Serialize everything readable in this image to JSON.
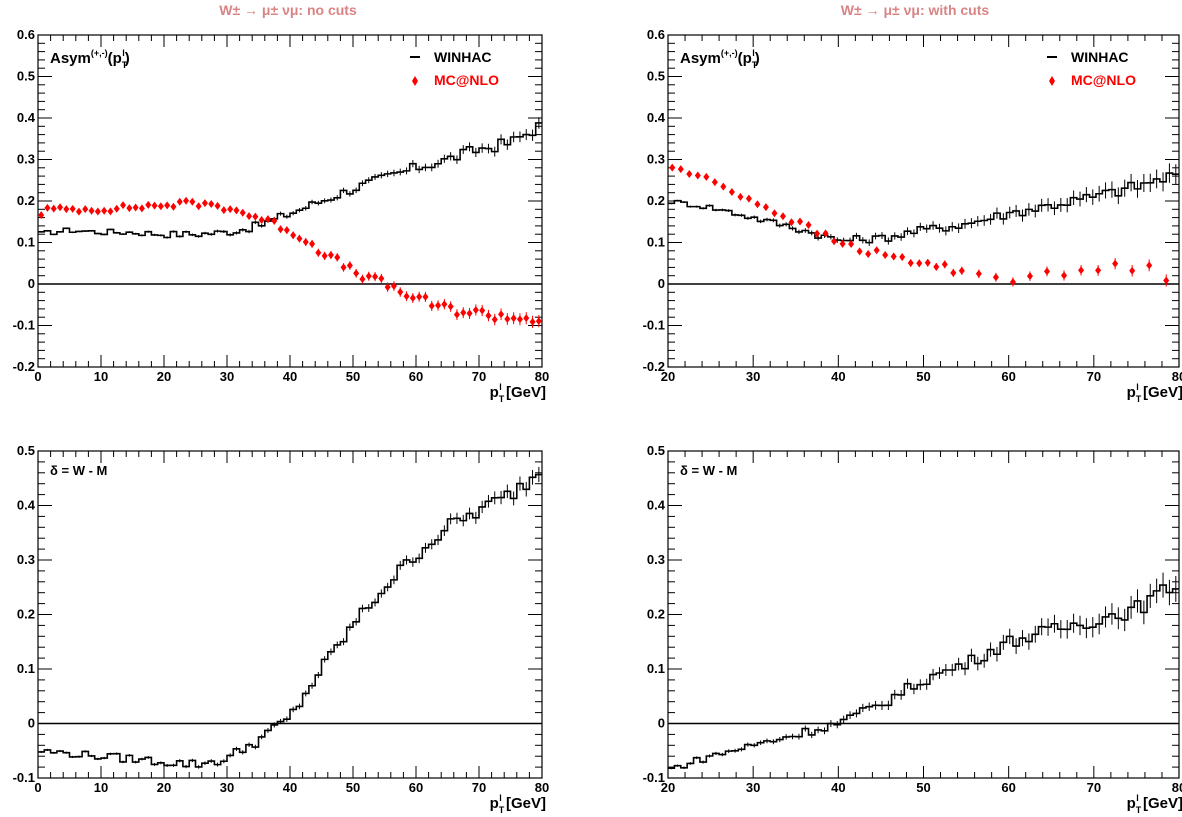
{
  "titles": {
    "left": "W± → μ± νμ: no cuts",
    "right": "W± → μ± νμ: with cuts"
  },
  "colors": {
    "winhac": "#000000",
    "mcnlo": "#ff0000",
    "title": "#d98484"
  },
  "chart_data": [
    {
      "id": "asym-nocuts",
      "type": "line",
      "title": "W± → μ± νμ: no cuts",
      "label": "Asym(+,-)(pT l)",
      "xlabel": "pT l [GeV]",
      "ylabel": "",
      "xlim": [
        0,
        80
      ],
      "ylim": [
        -0.2,
        0.6
      ],
      "x_ticks": [
        0,
        10,
        20,
        30,
        40,
        50,
        60,
        70,
        80
      ],
      "y_ticks": [
        -0.2,
        -0.1,
        0,
        0.1,
        0.2,
        0.3,
        0.4,
        0.5,
        0.6
      ],
      "legend": [
        "WINHAC",
        "MC@NLO"
      ],
      "legend_position": "top-right",
      "series": [
        {
          "name": "WINHAC",
          "style": "histogram",
          "x": [
            0,
            5,
            10,
            15,
            20,
            25,
            30,
            35,
            40,
            45,
            50,
            55,
            60,
            65,
            70,
            75,
            80
          ],
          "values": [
            0.12,
            0.13,
            0.125,
            0.125,
            0.12,
            0.12,
            0.125,
            0.14,
            0.17,
            0.2,
            0.23,
            0.255,
            0.28,
            0.3,
            0.325,
            0.34,
            0.385
          ]
        },
        {
          "name": "MC@NLO",
          "style": "markers",
          "x": [
            0,
            1,
            5,
            10,
            15,
            20,
            25,
            30,
            35,
            40,
            45,
            50,
            55,
            60,
            65,
            70,
            75,
            80
          ],
          "values": [
            0.16,
            0.18,
            0.18,
            0.18,
            0.185,
            0.19,
            0.195,
            0.185,
            0.16,
            0.13,
            0.08,
            0.03,
            0.0,
            -0.035,
            -0.06,
            -0.07,
            -0.08,
            -0.085
          ]
        }
      ]
    },
    {
      "id": "asym-withcuts",
      "type": "line",
      "title": "W± → μ± νμ: with cuts",
      "label": "Asym(+,-)(pT l)",
      "xlabel": "pT l [GeV]",
      "ylabel": "",
      "xlim": [
        20,
        80
      ],
      "ylim": [
        -0.2,
        0.6
      ],
      "x_ticks": [
        20,
        30,
        40,
        50,
        60,
        70,
        80
      ],
      "y_ticks": [
        -0.2,
        -0.1,
        0,
        0.1,
        0.2,
        0.3,
        0.4,
        0.5,
        0.6
      ],
      "legend": [
        "WINHAC",
        "MC@NLO"
      ],
      "legend_position": "top-right",
      "series": [
        {
          "name": "WINHAC",
          "style": "histogram",
          "x": [
            20,
            25,
            30,
            35,
            40,
            45,
            50,
            55,
            60,
            65,
            70,
            75,
            80
          ],
          "values": [
            0.2,
            0.185,
            0.16,
            0.135,
            0.105,
            0.11,
            0.13,
            0.145,
            0.17,
            0.19,
            0.21,
            0.235,
            0.265
          ]
        },
        {
          "name": "MC@NLO",
          "style": "markers",
          "x": [
            20,
            25,
            30,
            35,
            40,
            45,
            50,
            55,
            60,
            65,
            70,
            75,
            80
          ],
          "values": [
            0.285,
            0.25,
            0.2,
            0.15,
            0.1,
            0.07,
            0.05,
            0.03,
            0.015,
            0.02,
            0.035,
            0.045,
            0.01
          ]
        }
      ]
    },
    {
      "id": "delta-nocuts",
      "type": "line",
      "label": "δ = W - M",
      "xlabel": "pT l [GeV]",
      "ylabel": "",
      "xlim": [
        0,
        80
      ],
      "ylim": [
        -0.1,
        0.5
      ],
      "x_ticks": [
        0,
        10,
        20,
        30,
        40,
        50,
        60,
        70,
        80
      ],
      "y_ticks": [
        -0.1,
        0,
        0.1,
        0.2,
        0.3,
        0.4,
        0.5
      ],
      "series": [
        {
          "name": "δ",
          "style": "histogram",
          "x": [
            0,
            5,
            10,
            15,
            20,
            25,
            30,
            35,
            40,
            45,
            50,
            55,
            60,
            65,
            70,
            75,
            80
          ],
          "values": [
            -0.05,
            -0.055,
            -0.06,
            -0.065,
            -0.07,
            -0.075,
            -0.065,
            -0.03,
            0.01,
            0.1,
            0.18,
            0.25,
            0.31,
            0.36,
            0.39,
            0.42,
            0.465
          ]
        }
      ]
    },
    {
      "id": "delta-withcuts",
      "type": "line",
      "label": "δ = W - M",
      "xlabel": "pT l [GeV]",
      "ylabel": "",
      "xlim": [
        20,
        80
      ],
      "ylim": [
        -0.1,
        0.5
      ],
      "x_ticks": [
        20,
        30,
        40,
        50,
        60,
        70,
        80
      ],
      "y_ticks": [
        -0.1,
        0,
        0.1,
        0.2,
        0.3,
        0.4,
        0.5
      ],
      "series": [
        {
          "name": "δ",
          "style": "histogram",
          "x": [
            20,
            25,
            30,
            35,
            40,
            45,
            50,
            55,
            60,
            65,
            70,
            75,
            80
          ],
          "values": [
            -0.085,
            -0.06,
            -0.04,
            -0.02,
            0.0,
            0.035,
            0.08,
            0.11,
            0.15,
            0.17,
            0.19,
            0.21,
            0.26
          ]
        }
      ]
    }
  ]
}
